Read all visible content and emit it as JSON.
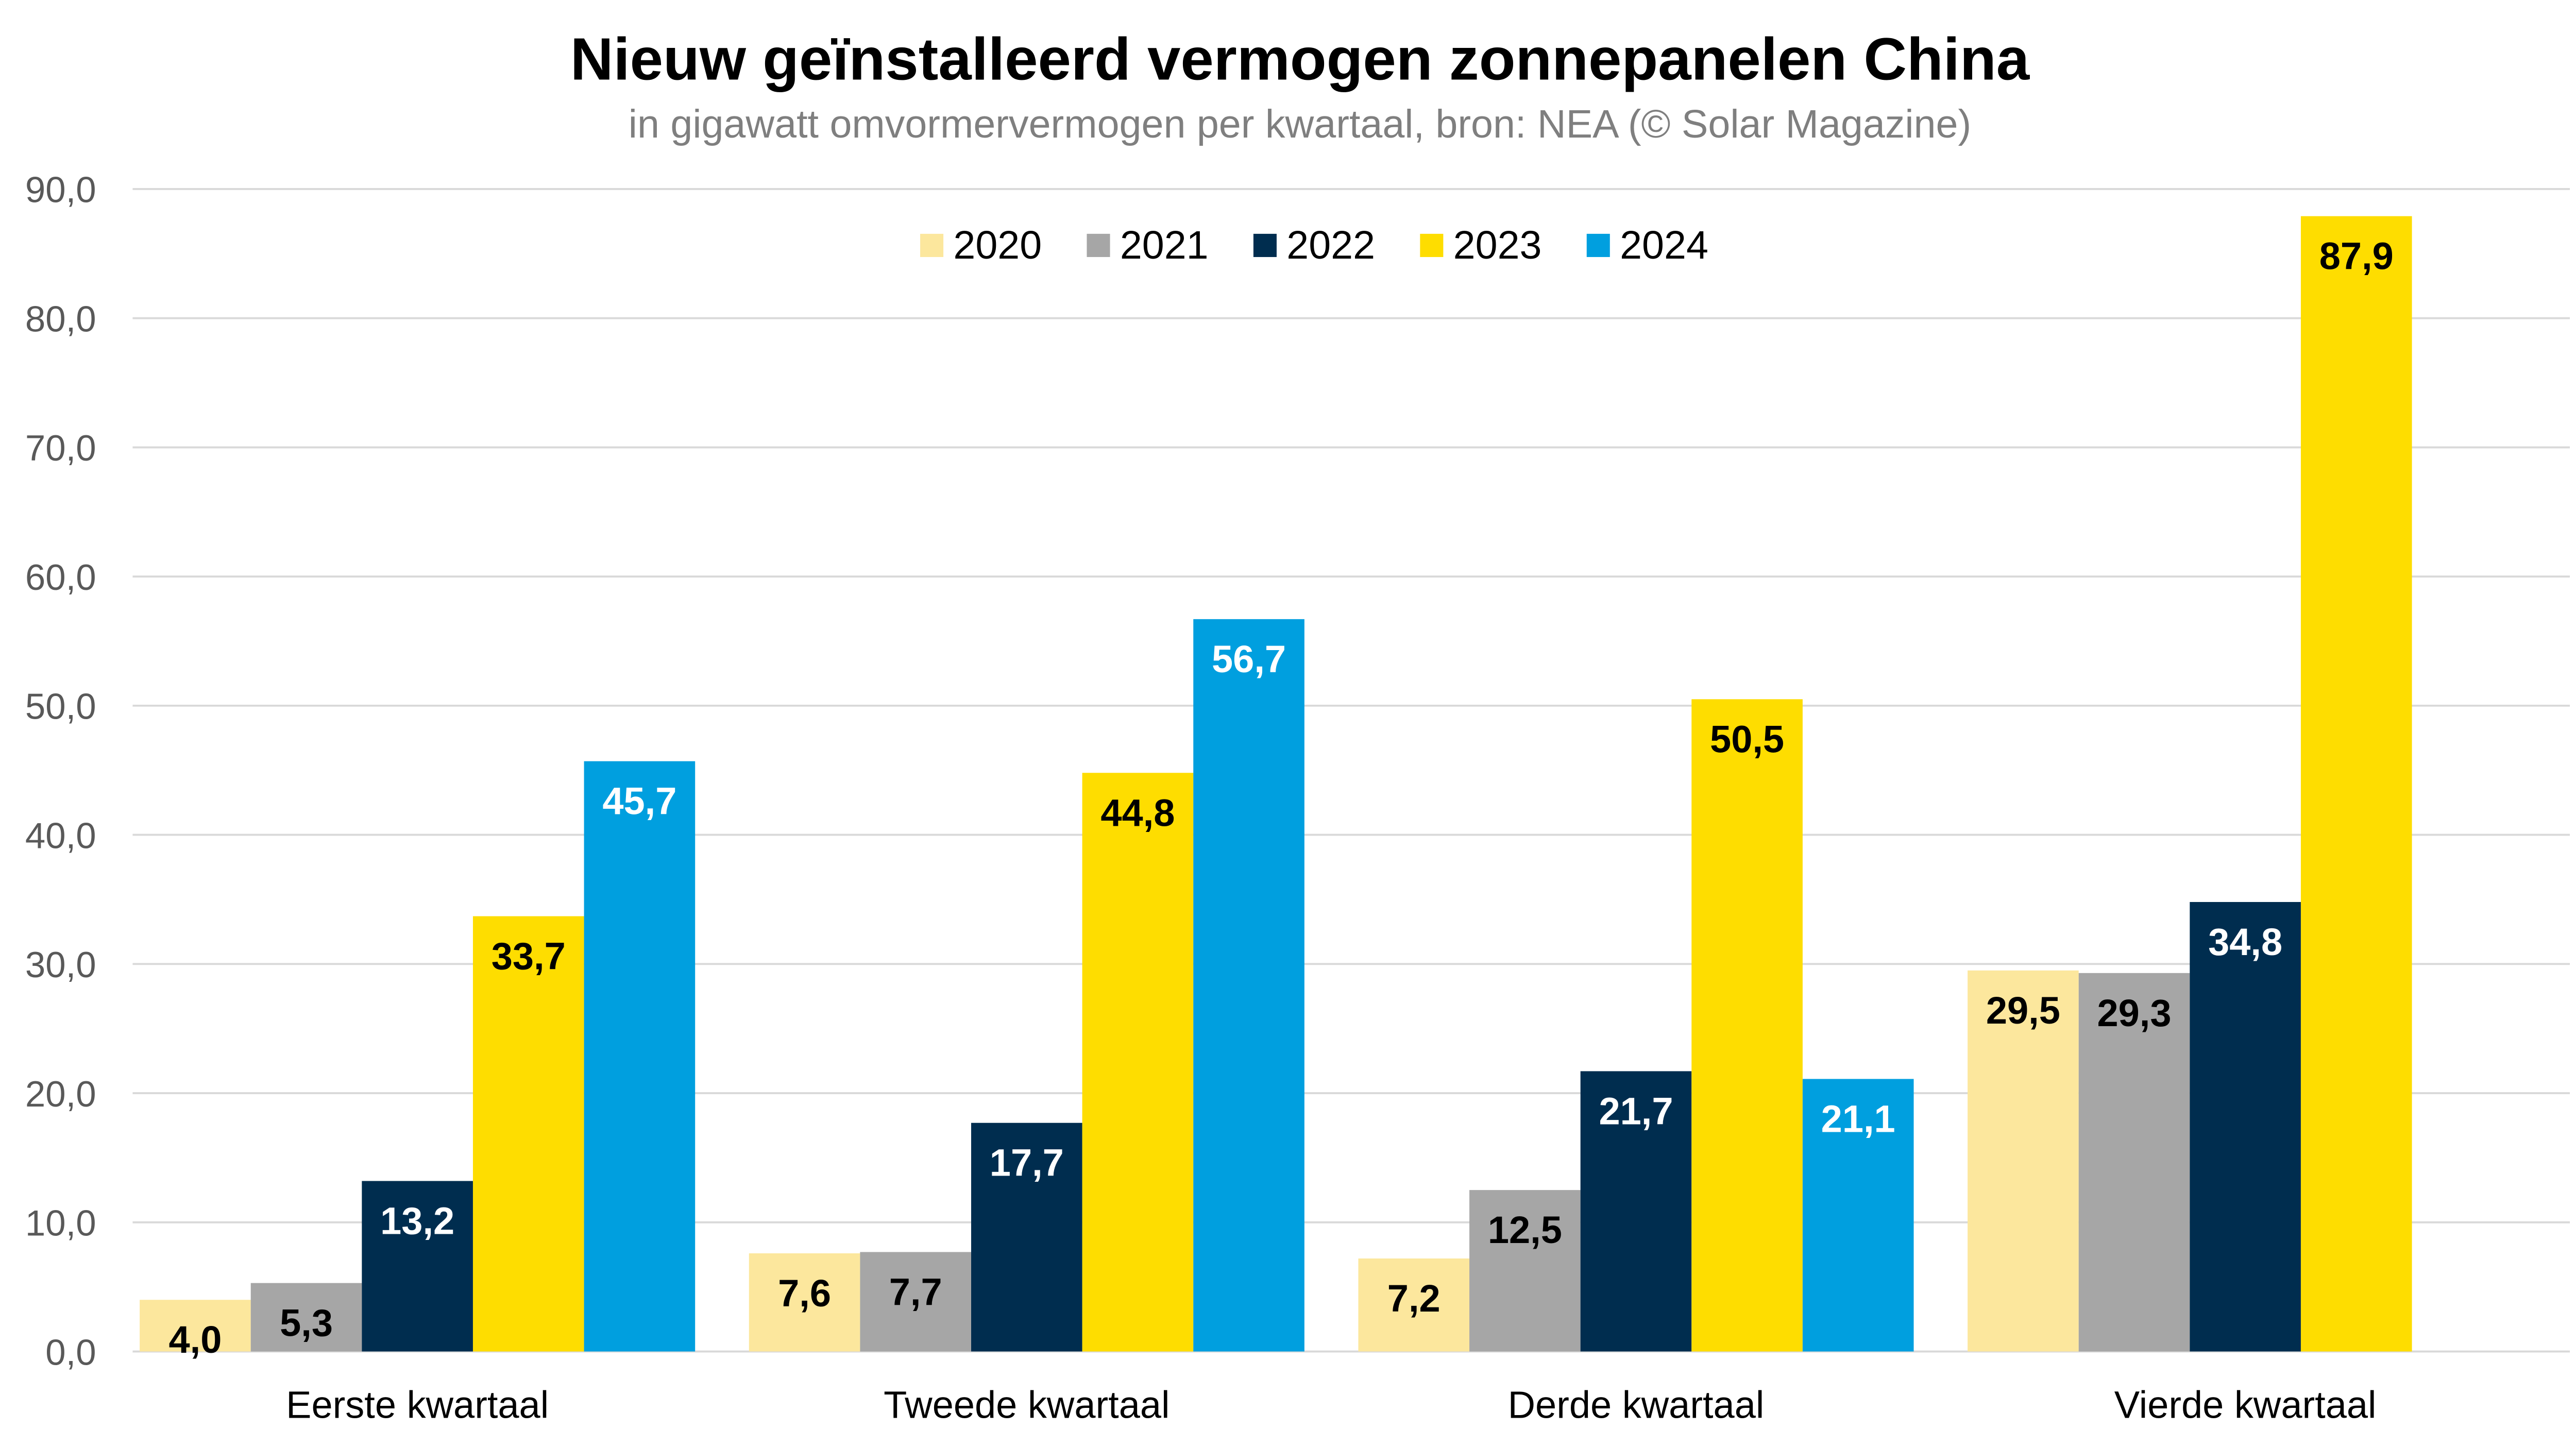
{
  "chart_data": {
    "type": "bar",
    "title": "Nieuw geïnstalleerd vermogen zonnepanelen China",
    "subtitle": "in gigawatt omvormervermogen per kwartaal, bron: NEA (© Solar Magazine)",
    "xlabel": "",
    "ylabel": "",
    "ylim": [
      0,
      90
    ],
    "yticks": [
      0,
      10,
      20,
      30,
      40,
      50,
      60,
      70,
      80,
      90
    ],
    "ytick_labels": [
      "0,0",
      "10,0",
      "20,0",
      "30,0",
      "40,0",
      "50,0",
      "60,0",
      "70,0",
      "80,0",
      "90,0"
    ],
    "grid": true,
    "legend_position": "top-center",
    "categories": [
      "Eerste kwartaal",
      "Tweede kwartaal",
      "Derde kwartaal",
      "Vierde kwartaal"
    ],
    "series": [
      {
        "name": "2020",
        "color": "#fce79d",
        "label_color": "#000000",
        "values": [
          4.0,
          7.6,
          7.2,
          29.5
        ],
        "labels": [
          "4,0",
          "7,6",
          "7,2",
          "29,5"
        ]
      },
      {
        "name": "2021",
        "color": "#a6a6a6",
        "label_color": "#000000",
        "values": [
          5.3,
          7.7,
          12.5,
          29.3
        ],
        "labels": [
          "5,3",
          "7,7",
          "12,5",
          "29,3"
        ]
      },
      {
        "name": "2022",
        "color": "#002d4f",
        "label_color": "#ffffff",
        "values": [
          13.2,
          17.7,
          21.7,
          34.8
        ],
        "labels": [
          "13,2",
          "17,7",
          "21,7",
          "34,8"
        ]
      },
      {
        "name": "2023",
        "color": "#fedd00",
        "label_color": "#000000",
        "values": [
          33.7,
          44.8,
          50.5,
          87.9
        ],
        "labels": [
          "33,7",
          "44,8",
          "50,5",
          "87,9"
        ]
      },
      {
        "name": "2024",
        "color": "#009fdf",
        "label_color": "#ffffff",
        "values": [
          45.7,
          56.7,
          21.1,
          null
        ],
        "labels": [
          "45,7",
          "56,7",
          "21,1",
          null
        ]
      }
    ]
  }
}
